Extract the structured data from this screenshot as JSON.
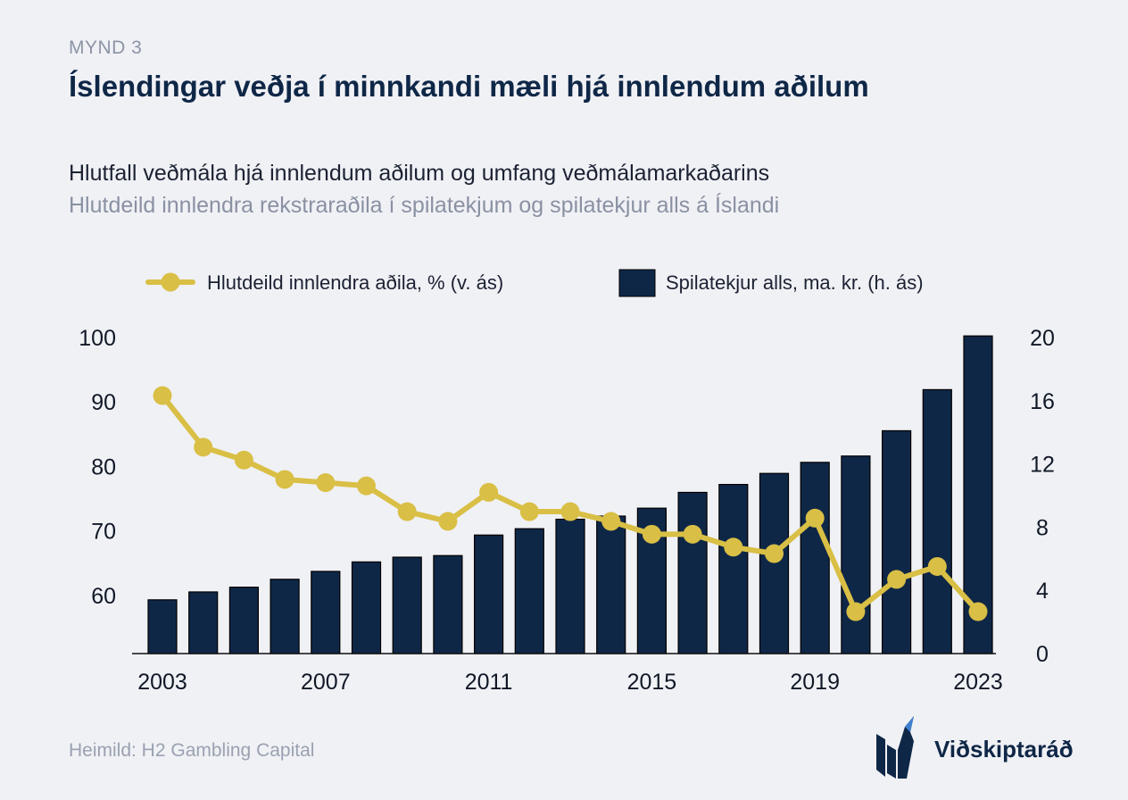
{
  "figure_label": "MYND 3",
  "title": "Íslendingar veðja í minnkandi mæli hjá innlendum aðilum",
  "subtitle": "Hlutfall veðmála hjá innlendum aðilum og umfang veðmálamarkaðarins",
  "subtitle2": "Hlutdeild innlendra rekstraraðila í spilatekjum og spilatekjur alls á Íslandi",
  "source": "Heimild: H2 Gambling Capital",
  "logo_text": "Viðskiptaráð",
  "colors": {
    "bar": "#0f2747",
    "line": "#d9bf45",
    "background": "#f0f1f5"
  },
  "chart_data": {
    "type": "bar",
    "x": [
      2003,
      2004,
      2005,
      2006,
      2007,
      2008,
      2009,
      2010,
      2011,
      2012,
      2013,
      2014,
      2015,
      2016,
      2017,
      2018,
      2019,
      2020,
      2021,
      2022,
      2023
    ],
    "x_tick_labels": [
      "2003",
      "2007",
      "2011",
      "2015",
      "2019",
      "2023"
    ],
    "series": [
      {
        "name": "Hlutdeild innlendra aðila, %  (v. ás)",
        "type": "line",
        "axis": "left",
        "values": [
          91,
          83,
          81,
          78,
          77.5,
          77,
          73,
          71.5,
          76,
          73,
          73,
          71.5,
          69.5,
          69.5,
          67.5,
          66.5,
          72,
          57.5,
          62.5,
          64.5,
          57.5
        ]
      },
      {
        "name": "Spilatekjur alls, ma. kr. (h. ás)",
        "type": "bar",
        "axis": "right",
        "values": [
          3.4,
          3.9,
          4.2,
          4.7,
          5.2,
          5.8,
          6.1,
          6.2,
          7.5,
          7.9,
          8.5,
          8.7,
          9.2,
          10.2,
          10.7,
          11.4,
          12.1,
          12.5,
          14.1,
          16.7,
          20.1
        ]
      }
    ],
    "y_left": {
      "ticks": [
        60,
        70,
        80,
        90,
        100
      ],
      "range": [
        51,
        100
      ]
    },
    "y_right": {
      "ticks": [
        0,
        4,
        8,
        12,
        16,
        20
      ],
      "range": [
        0,
        20
      ]
    },
    "legend_position": "top",
    "grid": false
  }
}
